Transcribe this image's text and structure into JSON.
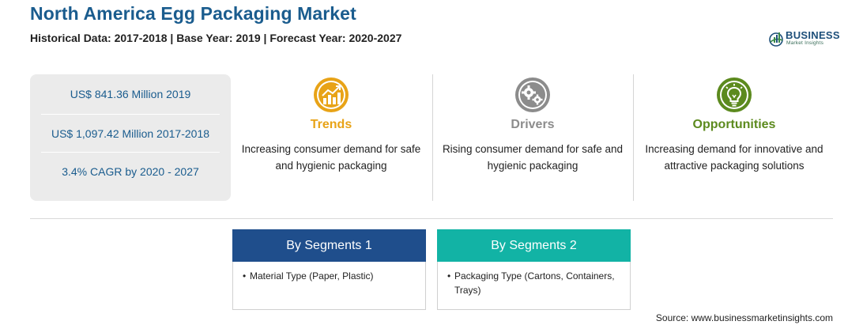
{
  "header": {
    "title": "North America Egg Packaging Market",
    "subtitle": "Historical Data: 2017-2018 | Base Year: 2019 | Forecast Year: 2020-2027"
  },
  "logo": {
    "name": "BUSINESS",
    "tagline": "Market Insights"
  },
  "stats": [
    "US$ 841.36 Million 2019",
    "US$ 1,097.42 Million 2017-2018",
    "3.4% CAGR by 2020 - 2027"
  ],
  "features": [
    {
      "title": "Trends",
      "description": "Increasing consumer demand for safe and hygienic packaging",
      "icon": "trending-chart-icon",
      "color": "#e8a317"
    },
    {
      "title": "Drivers",
      "description": "Rising consumer demand for safe and hygienic packaging",
      "icon": "gears-icon",
      "color": "#8c8c8c"
    },
    {
      "title": "Opportunities",
      "description": "Increasing demand for innovative and attractive packaging solutions",
      "icon": "lightbulb-icon",
      "color": "#5c8a1e"
    }
  ],
  "segments": [
    {
      "heading": "By Segments 1",
      "color": "#1f4e8c",
      "items": [
        "Material Type (Paper, Plastic)"
      ]
    },
    {
      "heading": "By Segments 2",
      "color": "#12b3a5",
      "items": [
        "Packaging Type (Cartons, Containers, Trays)"
      ]
    }
  ],
  "source": "Source: www.businessmarketinsights.com",
  "colors": {
    "title_blue": "#1a5c8e",
    "panel_gray": "#ebebeb"
  }
}
